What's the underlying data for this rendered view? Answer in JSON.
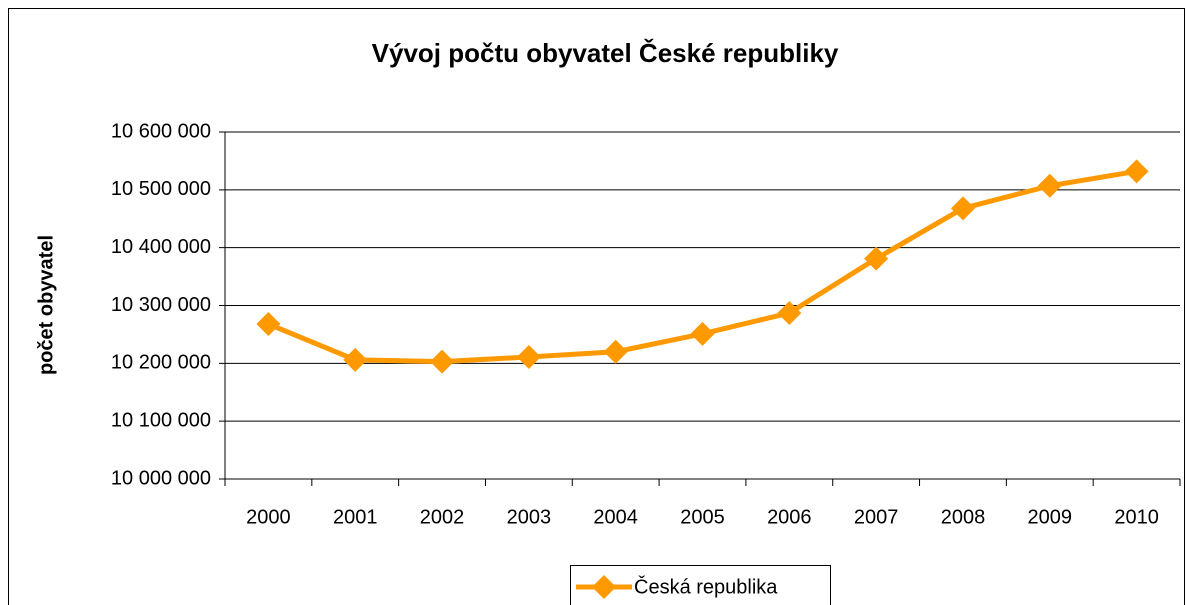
{
  "chart_data": {
    "type": "line",
    "title": "Vývoj počtu obyvatel České republiky",
    "ylabel": "počet obyvatel",
    "categories": [
      "2000",
      "2001",
      "2002",
      "2003",
      "2004",
      "2005",
      "2006",
      "2007",
      "2008",
      "2009",
      "2010"
    ],
    "series": [
      {
        "name": "Česká republika",
        "color": "#ff9900",
        "values": [
          10268000,
          10206000,
          10203000,
          10211000,
          10220000,
          10251000,
          10287000,
          10381000,
          10468000,
          10507000,
          10532000
        ]
      }
    ],
    "ylim": [
      10000000,
      10600000
    ],
    "yticks": [
      {
        "value": 10000000,
        "label": "10 000 000"
      },
      {
        "value": 10100000,
        "label": "10 100 000"
      },
      {
        "value": 10200000,
        "label": "10 200 000"
      },
      {
        "value": 10300000,
        "label": "10 300 000"
      },
      {
        "value": 10400000,
        "label": "10 400 000"
      },
      {
        "value": 10500000,
        "label": "10 500 000"
      },
      {
        "value": 10600000,
        "label": "10 600 000"
      }
    ],
    "grid": true,
    "legend": "bottom"
  }
}
